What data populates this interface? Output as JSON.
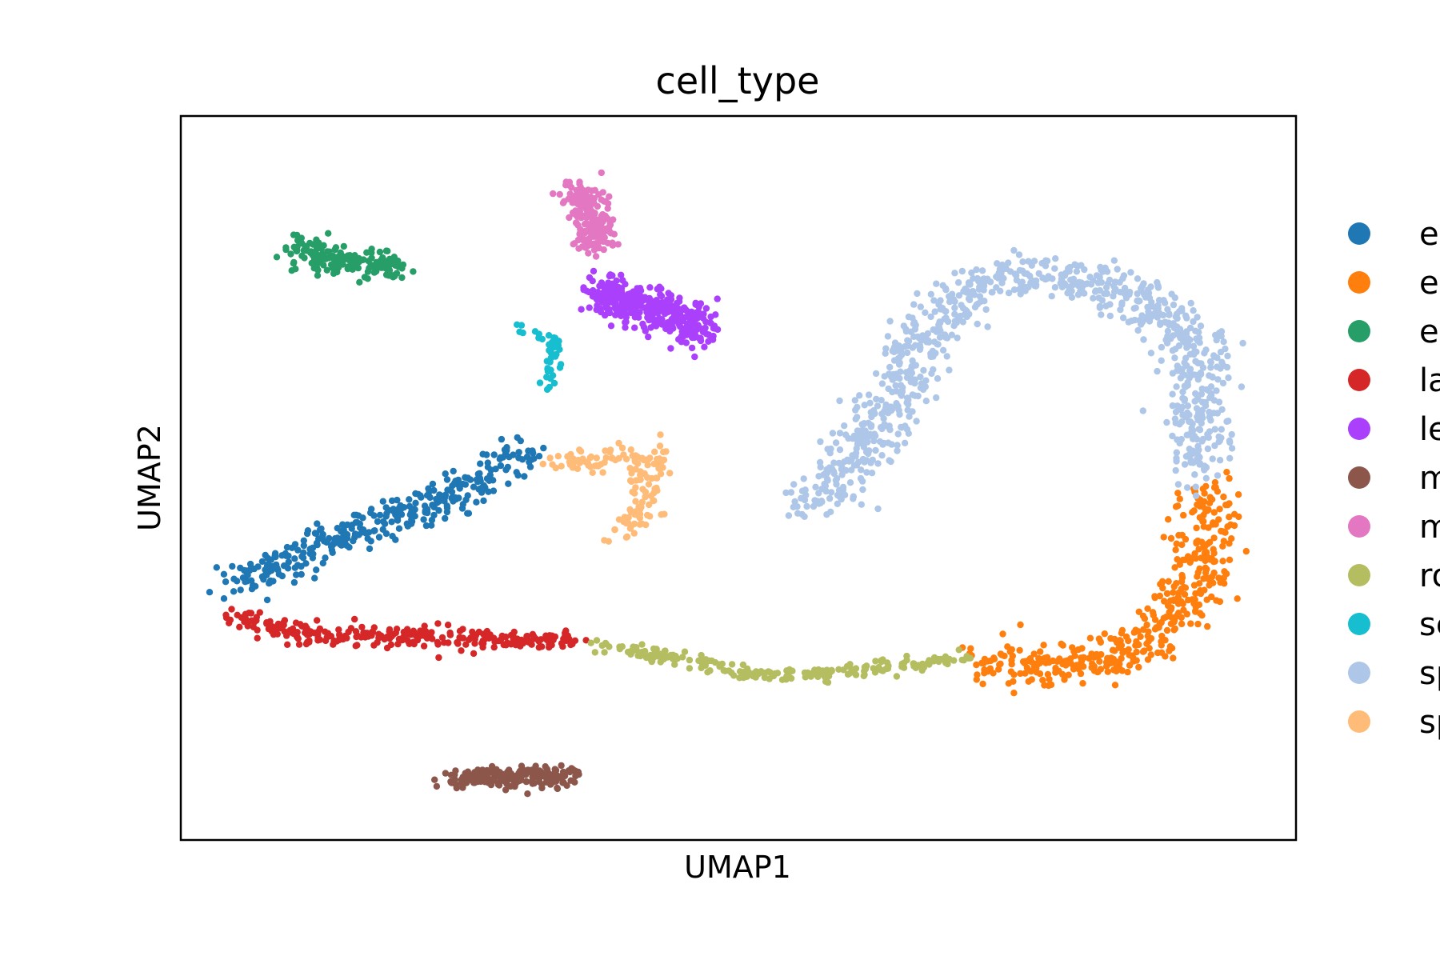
{
  "chart_data": {
    "type": "scatter",
    "title": "cell_type",
    "xlabel": "UMAP1",
    "ylabel": "UMAP2",
    "xlim": [
      0,
      100
    ],
    "ylim": [
      0,
      100
    ],
    "grid": false,
    "ticks": false,
    "legend_position": "right, outside plot, clipped at image edge",
    "legend": [
      {
        "label": "e",
        "color": "#1f77b4"
      },
      {
        "label": "e",
        "color": "#ff7f0e"
      },
      {
        "label": "e",
        "color": "#279e68"
      },
      {
        "label": "la",
        "color": "#d62728"
      },
      {
        "label": "le",
        "color": "#aa40fc"
      },
      {
        "label": "m",
        "color": "#8c564b"
      },
      {
        "label": "m",
        "color": "#e377c2"
      },
      {
        "label": "ro",
        "color": "#b5bd61"
      },
      {
        "label": "se",
        "color": "#17becf"
      },
      {
        "label": "sp",
        "color": "#aec7e8"
      },
      {
        "label": "sp",
        "color": "#ffbb78"
      }
    ],
    "series": [
      {
        "color": "#1f77b4",
        "n": 340,
        "path": [
          [
            5,
            35
          ],
          [
            12,
            40.5
          ],
          [
            20,
            45
          ],
          [
            26,
            49
          ],
          [
            30,
            53
          ],
          [
            32.5,
            53.8
          ]
        ],
        "spread": 2.2
      },
      {
        "color": "#ff7f0e",
        "n": 440,
        "path": [
          [
            72,
            24.5
          ],
          [
            78,
            24
          ],
          [
            85,
            25.5
          ],
          [
            89,
            30
          ],
          [
            91,
            36
          ],
          [
            92,
            43
          ],
          [
            91.5,
            49
          ]
        ],
        "spread": 2.6
      },
      {
        "color": "#279e68",
        "n": 170,
        "path": [
          [
            10.5,
            81.5
          ],
          [
            14,
            80
          ],
          [
            17,
            79.5
          ],
          [
            19.5,
            79
          ]
        ],
        "spread": 2.0
      },
      {
        "color": "#d62728",
        "n": 280,
        "path": [
          [
            5,
            31
          ],
          [
            8.5,
            29
          ],
          [
            13,
            28
          ],
          [
            18,
            28.3
          ],
          [
            24,
            28
          ],
          [
            28.5,
            27.5
          ],
          [
            35,
            27.5
          ]
        ],
        "spread": 1.3
      },
      {
        "color": "#aa40fc",
        "n": 360,
        "path": [
          [
            37.5,
            76
          ],
          [
            40,
            74
          ],
          [
            43,
            73
          ],
          [
            45.5,
            72
          ],
          [
            46.5,
            70
          ]
        ],
        "spread": 2.4
      },
      {
        "color": "#8c564b",
        "n": 200,
        "path": [
          [
            24.5,
            8.3
          ],
          [
            28,
            8.7
          ],
          [
            31.5,
            8.7
          ],
          [
            35,
            9
          ]
        ],
        "spread": 1.3
      },
      {
        "color": "#e377c2",
        "n": 200,
        "path": [
          [
            34.8,
            90
          ],
          [
            36.5,
            88
          ],
          [
            37,
            85
          ],
          [
            37.2,
            82
          ]
        ],
        "spread": 1.7
      },
      {
        "color": "#b5bd61",
        "n": 220,
        "path": [
          [
            37,
            27
          ],
          [
            42,
            25.5
          ],
          [
            47,
            24.5
          ],
          [
            52,
            22.5
          ],
          [
            57,
            23.2
          ],
          [
            63,
            24
          ],
          [
            67,
            24.5
          ],
          [
            70.5,
            25.5
          ]
        ],
        "spread": 0.9
      },
      {
        "color": "#17becf",
        "n": 45,
        "path": [
          [
            30,
            71
          ],
          [
            33.5,
            69
          ],
          [
            33.5,
            66
          ],
          [
            33,
            62.5
          ]
        ],
        "spread": 0.7
      },
      {
        "color": "#aec7e8",
        "n": 900,
        "path": [
          [
            56,
            46
          ],
          [
            59,
            50
          ],
          [
            62,
            56
          ],
          [
            64.5,
            63
          ],
          [
            67,
            70
          ],
          [
            71,
            76
          ],
          [
            77,
            78
          ],
          [
            83,
            77
          ],
          [
            88,
            73
          ],
          [
            91,
            68
          ],
          [
            91.5,
            61
          ],
          [
            91.5,
            55
          ],
          [
            91,
            51
          ]
        ],
        "spread": 2.8
      },
      {
        "color": "#ffbb78",
        "n": 150,
        "path": [
          [
            33.5,
            52.5
          ],
          [
            37,
            52.5
          ],
          [
            40,
            53
          ],
          [
            42.5,
            53
          ],
          [
            42,
            49
          ],
          [
            41,
            45
          ],
          [
            38.5,
            42
          ]
        ],
        "spread": 1.5
      }
    ]
  }
}
